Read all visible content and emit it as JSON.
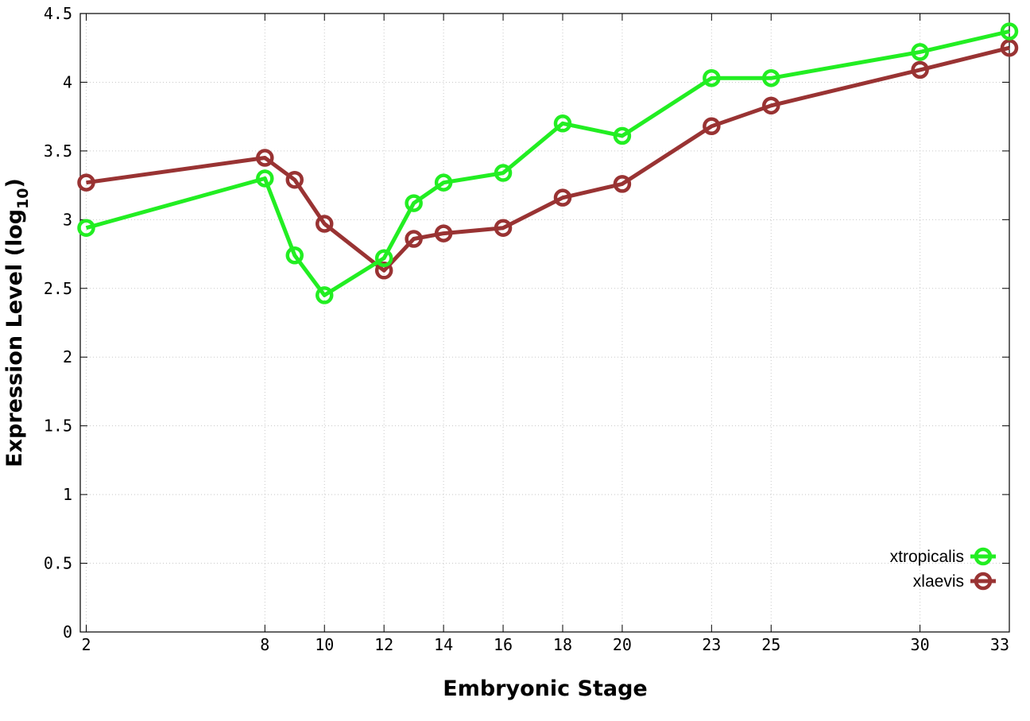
{
  "chart_data": {
    "type": "line",
    "title": "",
    "xlabel": "Embryonic Stage",
    "ylabel_main": "Expression Level (log",
    "ylabel_sub": "10",
    "ylabel_close": ")",
    "x_ticks": [
      "2",
      "8",
      "10",
      "12",
      "14",
      "16",
      "18",
      "20",
      "23",
      "25",
      "30",
      "33"
    ],
    "y_ticks": [
      "0",
      "0.5",
      "1",
      "1.5",
      "2",
      "2.5",
      "3",
      "3.5",
      "4",
      "4.5"
    ],
    "xlim": [
      1.8,
      33
    ],
    "ylim": [
      0,
      4.5
    ],
    "grid": true,
    "legend_position": "bottom-right",
    "series": [
      {
        "name": "xtropicalis",
        "color": "#22ee22",
        "x": [
          2,
          8,
          9,
          10,
          12,
          13,
          14,
          16,
          18,
          20,
          23,
          25,
          30,
          33
        ],
        "y": [
          2.94,
          3.3,
          2.74,
          2.45,
          2.72,
          3.12,
          3.27,
          3.34,
          3.7,
          3.61,
          4.03,
          4.03,
          4.22,
          4.37
        ]
      },
      {
        "name": "xlaevis",
        "color": "#993333",
        "x": [
          2,
          8,
          9,
          10,
          12,
          13,
          14,
          16,
          18,
          20,
          23,
          25,
          30,
          33
        ],
        "y": [
          3.27,
          3.45,
          3.29,
          2.97,
          2.63,
          2.86,
          2.9,
          2.94,
          3.16,
          3.26,
          3.68,
          3.83,
          4.09,
          4.25
        ]
      }
    ]
  }
}
